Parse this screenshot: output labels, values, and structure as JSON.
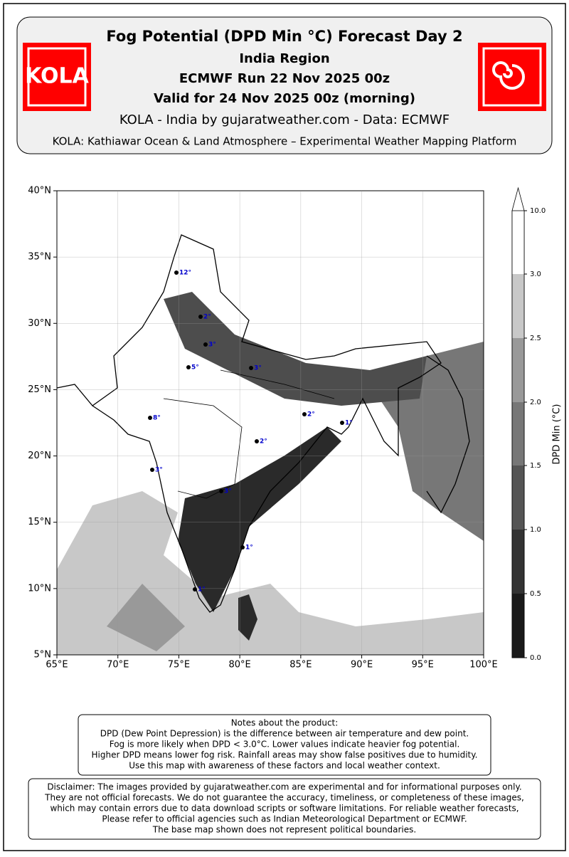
{
  "header": {
    "title": "Fog Potential (DPD Min °C) Forecast Day 2",
    "region": "India Region",
    "run": "ECMWF Run 22 Nov 2025 00z",
    "valid": "Valid for 24 Nov 2025 00z (morning)",
    "credit": "KOLA - India by gujaratweather.com  -  Data: ECMWF",
    "platform": "KOLA: Kathiawar Ocean & Land Atmosphere – Experimental Weather Mapping Platform",
    "logo": "KOLA"
  },
  "map": {
    "xticks": [
      "65°E",
      "70°E",
      "75°E",
      "80°E",
      "85°E",
      "90°E",
      "95°E",
      "100°E"
    ],
    "yticks": [
      "5°N",
      "10°N",
      "15°N",
      "20°N",
      "25°N",
      "30°N",
      "35°N",
      "40°N"
    ],
    "points": [
      "12°",
      "2°",
      "3°",
      "5°",
      "3°",
      "8°",
      "2°",
      "1°",
      "2°",
      "3°",
      "3°",
      "1°",
      "1°"
    ]
  },
  "colorbar": {
    "label": "DPD Min (°C)",
    "ticks": [
      "0.0",
      "0.5",
      "1.0",
      "1.5",
      "2.0",
      "2.5",
      "3.0",
      "10.0"
    ]
  },
  "notes": [
    "Notes about the product:",
    "DPD (Dew Point Depression) is the difference between air temperature and dew point.",
    "Fog is more likely when DPD < 3.0°C. Lower values indicate heavier fog potential.",
    "Higher DPD means lower fog risk. Rainfall areas may show false positives due to humidity.",
    "Use this map with awareness of these factors and local weather context."
  ],
  "disclaimer": [
    "Disclaimer: The images provided by gujaratweather.com are experimental and for informational purposes only.",
    "They are not official forecasts. We do not guarantee the accuracy, timeliness, or completeness of these images,",
    "which may contain errors due to data download scripts or software limitations. For reliable weather forecasts,",
    "Please refer to official agencies such as Indian Meteorological Department or ECMWF.",
    "The base map shown does not represent political boundaries."
  ]
}
